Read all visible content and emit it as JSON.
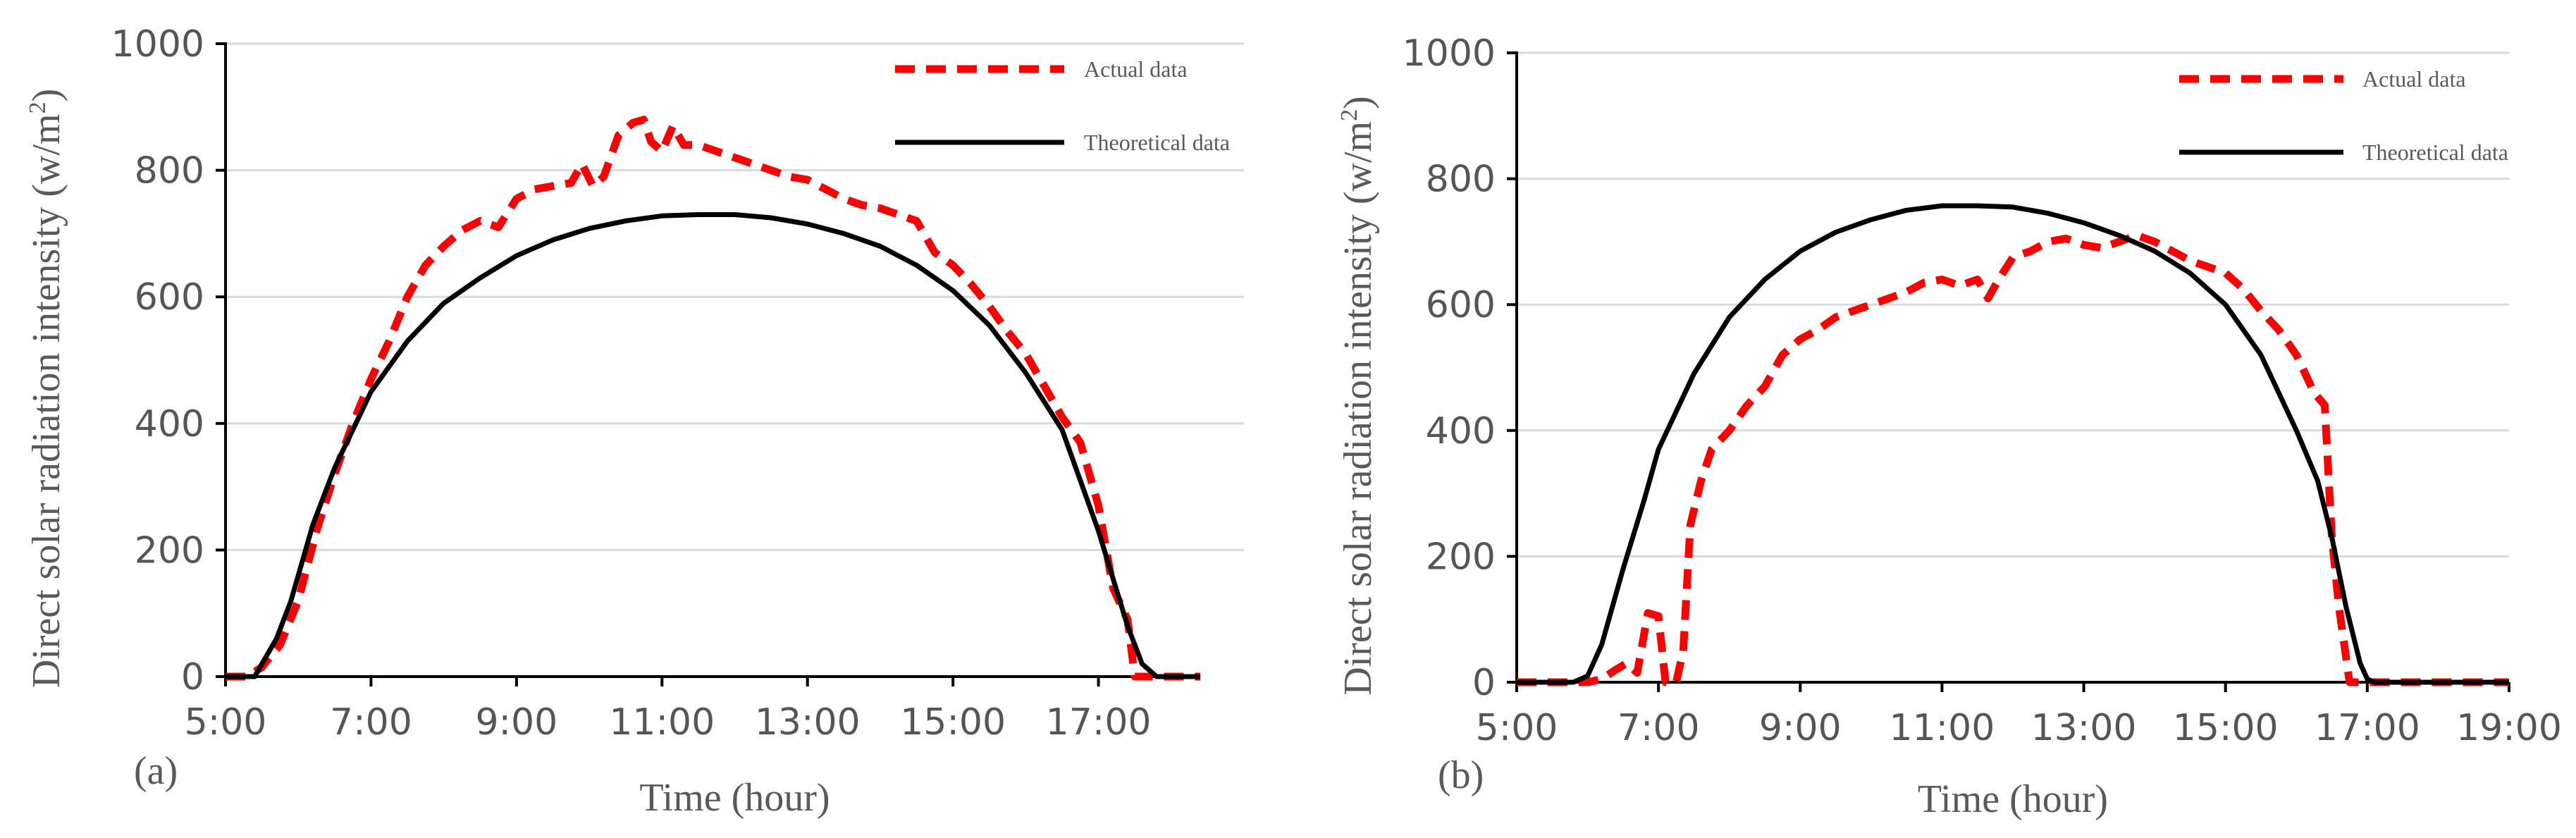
{
  "colors": {
    "actual": "#ff0000",
    "theoretical": "#000000",
    "grid": "#d9d9d9"
  },
  "chart_data": [
    {
      "type": "line",
      "panel_label": "(a)",
      "title": "",
      "xlabel": "Time (hour)",
      "ylabel_main": "Direct solar radiation intensity (w/m",
      "ylabel_sup": "2",
      "ylabel_end": ")",
      "xlim": [
        5,
        19
      ],
      "ylim": [
        0,
        1000
      ],
      "x_ticks": [
        5,
        7,
        9,
        11,
        13,
        15,
        17
      ],
      "x_tick_labels": [
        "5:00",
        "7:00",
        "9:00",
        "11:00",
        "13:00",
        "15:00",
        "17:00"
      ],
      "y_ticks": [
        0,
        200,
        400,
        600,
        800,
        1000
      ],
      "y_tick_labels": [
        "0",
        "200",
        "400",
        "600",
        "800",
        "1000"
      ],
      "grid": true,
      "legend_position": "top-right",
      "series": [
        {
          "name": "Actual data",
          "style": "dashed",
          "x": [
            5.0,
            5.3,
            5.5,
            5.75,
            6.0,
            6.25,
            6.5,
            6.75,
            7.0,
            7.25,
            7.5,
            7.75,
            8.0,
            8.25,
            8.5,
            8.75,
            9.0,
            9.25,
            9.5,
            9.75,
            9.9,
            10.05,
            10.2,
            10.4,
            10.6,
            10.75,
            10.85,
            11.0,
            11.15,
            11.3,
            11.5,
            11.75,
            12.0,
            12.25,
            12.5,
            12.75,
            13.0,
            13.25,
            13.5,
            13.75,
            14.0,
            14.25,
            14.5,
            14.75,
            15.0,
            15.25,
            15.5,
            15.75,
            16.0,
            16.25,
            16.5,
            16.75,
            17.0,
            17.2,
            17.4,
            17.5,
            17.6,
            17.8,
            18.0,
            18.4
          ],
          "y": [
            0,
            0,
            15,
            50,
            120,
            230,
            320,
            400,
            470,
            530,
            600,
            650,
            680,
            705,
            720,
            710,
            755,
            770,
            775,
            780,
            810,
            775,
            790,
            855,
            875,
            880,
            845,
            830,
            870,
            840,
            840,
            830,
            820,
            810,
            800,
            790,
            785,
            770,
            755,
            745,
            740,
            730,
            720,
            670,
            650,
            620,
            585,
            545,
            510,
            460,
            410,
            370,
            270,
            140,
            90,
            0,
            0,
            0,
            0,
            0
          ]
        },
        {
          "name": "Theoretical data",
          "style": "solid",
          "x": [
            5.0,
            5.4,
            5.5,
            5.7,
            5.9,
            6.2,
            6.5,
            7.0,
            7.5,
            8.0,
            8.5,
            9.0,
            9.5,
            10.0,
            10.5,
            11.0,
            11.5,
            12.0,
            12.5,
            13.0,
            13.5,
            14.0,
            14.5,
            15.0,
            15.5,
            16.0,
            16.5,
            17.0,
            17.2,
            17.4,
            17.6,
            17.8,
            18.0,
            18.4
          ],
          "y": [
            0,
            0,
            20,
            60,
            120,
            240,
            330,
            450,
            530,
            590,
            630,
            665,
            690,
            708,
            720,
            728,
            730,
            730,
            725,
            715,
            700,
            680,
            650,
            610,
            555,
            480,
            390,
            230,
            155,
            80,
            20,
            0,
            0,
            0
          ]
        }
      ]
    },
    {
      "type": "line",
      "panel_label": "(b)",
      "title": "",
      "xlabel": "Time (hour)",
      "ylabel_main": "Direct solar radiation intensity (w/m",
      "ylabel_sup": "2",
      "ylabel_end": ")",
      "xlim": [
        5,
        19
      ],
      "ylim": [
        0,
        1000
      ],
      "x_ticks": [
        5,
        7,
        9,
        11,
        13,
        15,
        17,
        19
      ],
      "x_tick_labels": [
        "5:00",
        "7:00",
        "9:00",
        "11:00",
        "13:00",
        "15:00",
        "17:00",
        "19:00"
      ],
      "y_ticks": [
        0,
        200,
        400,
        600,
        800,
        1000
      ],
      "y_tick_labels": [
        "0",
        "200",
        "400",
        "600",
        "800",
        "1000"
      ],
      "grid": true,
      "legend_position": "top-right",
      "series": [
        {
          "name": "Actual data",
          "style": "dashed",
          "x": [
            5.0,
            5.5,
            6.0,
            6.2,
            6.4,
            6.55,
            6.7,
            6.85,
            7.0,
            7.1,
            7.25,
            7.35,
            7.45,
            7.6,
            7.75,
            8.0,
            8.25,
            8.5,
            8.75,
            9.0,
            9.25,
            9.5,
            9.75,
            10.0,
            10.25,
            10.5,
            10.75,
            11.0,
            11.25,
            11.5,
            11.65,
            11.8,
            12.0,
            12.25,
            12.5,
            12.75,
            13.0,
            13.25,
            13.5,
            13.75,
            14.0,
            14.25,
            14.5,
            14.75,
            15.0,
            15.25,
            15.5,
            15.75,
            16.0,
            16.25,
            16.4,
            16.5,
            16.6,
            16.75,
            17.0,
            17.5,
            18.0,
            18.5,
            19.0
          ],
          "y": [
            0,
            0,
            0,
            5,
            20,
            30,
            15,
            110,
            105,
            0,
            0,
            50,
            250,
            320,
            370,
            400,
            440,
            470,
            520,
            545,
            560,
            580,
            590,
            600,
            610,
            620,
            635,
            640,
            630,
            640,
            610,
            640,
            675,
            685,
            700,
            705,
            695,
            690,
            700,
            710,
            700,
            685,
            670,
            660,
            650,
            625,
            590,
            560,
            520,
            460,
            440,
            230,
            120,
            0,
            0,
            0,
            0,
            0,
            0
          ]
        },
        {
          "name": "Theoretical data",
          "style": "solid",
          "x": [
            5.0,
            5.8,
            6.0,
            6.2,
            6.5,
            6.8,
            7.0,
            7.5,
            8.0,
            8.5,
            9.0,
            9.5,
            10.0,
            10.5,
            11.0,
            11.5,
            12.0,
            12.5,
            13.0,
            13.5,
            14.0,
            14.5,
            15.0,
            15.5,
            16.0,
            16.3,
            16.5,
            16.7,
            16.9,
            17.0,
            17.1,
            17.5,
            18.0,
            19.0
          ],
          "y": [
            0,
            0,
            10,
            60,
            180,
            290,
            370,
            490,
            580,
            640,
            685,
            715,
            735,
            750,
            757,
            757,
            755,
            745,
            730,
            710,
            685,
            650,
            600,
            520,
            400,
            320,
            230,
            120,
            30,
            5,
            0,
            0,
            0,
            0
          ]
        }
      ]
    }
  ]
}
